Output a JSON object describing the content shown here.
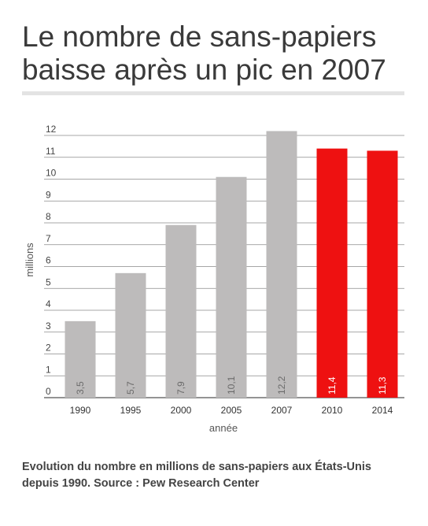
{
  "header": {
    "title": "Le nombre de sans-papiers baisse après un pic en 2007"
  },
  "caption": "Evolution du nombre en millions de sans-papiers aux États-Unis depuis 1990. Source : Pew Research Center",
  "chart_data": {
    "type": "bar",
    "categories": [
      "1990",
      "1995",
      "2000",
      "2005",
      "2007",
      "2010",
      "2014"
    ],
    "values": [
      3.5,
      5.7,
      7.9,
      10.1,
      12.2,
      11.4,
      11.3
    ],
    "value_labels": [
      "3,5",
      "5,7",
      "7,9",
      "10,1",
      "12,2",
      "11,4",
      "11,3"
    ],
    "bar_colors": [
      "#bdbbbb",
      "#bdbbbb",
      "#bdbbbb",
      "#bdbbbb",
      "#bdbbbb",
      "#ee1111",
      "#ee1111"
    ],
    "xlabel": "année",
    "ylabel": "millions",
    "ylim": [
      0,
      12
    ],
    "yticks": [
      "0",
      "1",
      "2",
      "3",
      "4",
      "5",
      "6",
      "7",
      "8",
      "9",
      "10",
      "11",
      "12"
    ],
    "grid": true
  }
}
